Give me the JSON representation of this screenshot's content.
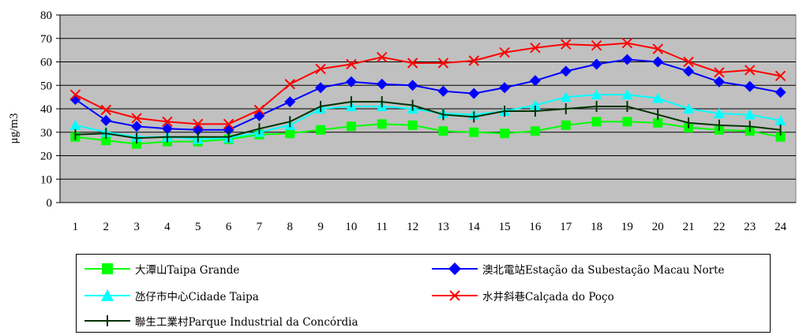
{
  "chart_data": {
    "type": "line",
    "ylabel": "μg/m3",
    "xlabel": "",
    "title": "",
    "ylim": [
      0,
      80
    ],
    "yticks": [
      0,
      10,
      20,
      30,
      40,
      50,
      60,
      70,
      80
    ],
    "categories": [
      "1",
      "2",
      "3",
      "4",
      "5",
      "6",
      "7",
      "8",
      "9",
      "10",
      "11",
      "12",
      "13",
      "14",
      "15",
      "16",
      "17",
      "18",
      "19",
      "20",
      "21",
      "22",
      "23",
      "24"
    ],
    "grid": "horizontal",
    "legend_position": "bottom",
    "series": [
      {
        "name": "大潭山Taipa Grande",
        "color": "#00ff00",
        "marker": "square",
        "values": [
          28,
          26.5,
          25,
          26,
          26,
          27,
          29,
          29.5,
          31,
          32.5,
          33.5,
          33,
          30.5,
          30,
          29.5,
          30.5,
          33,
          34.5,
          34.5,
          34,
          32,
          31,
          30.5,
          28
        ]
      },
      {
        "name": "澳北電站Estação da Subestação Macau Norte",
        "color": "#0000ff",
        "marker": "diamond",
        "values": [
          44,
          35,
          32.5,
          31.5,
          31,
          31,
          37,
          43,
          49,
          51.5,
          50.5,
          50,
          47.5,
          46.5,
          49,
          52,
          56,
          59,
          61,
          60,
          56,
          51.5,
          49.5,
          47
        ]
      },
      {
        "name": "氹仔市中心Cidade Taipa",
        "color": "#00ffff",
        "marker": "triangle",
        "values": [
          33,
          30,
          28,
          28,
          27,
          27.5,
          30,
          33,
          40,
          41,
          41,
          40,
          38,
          37.5,
          39,
          41.5,
          45,
          46,
          46,
          44.5,
          40,
          38,
          37.5,
          35
        ]
      },
      {
        "name": "水井斜巷Calçada do Poço",
        "color": "#ff0000",
        "marker": "x",
        "values": [
          46,
          39.5,
          36,
          34.5,
          33.5,
          33.5,
          39.5,
          50.5,
          57,
          59,
          62,
          59.5,
          59.5,
          60.5,
          64,
          66,
          67.5,
          67,
          68,
          65.5,
          60,
          55.5,
          56.5,
          54
        ]
      },
      {
        "name": "聯生工業村Parque Industrial da Concórdia",
        "color": "#003300",
        "marker": "plus",
        "values": [
          29,
          29.5,
          27.5,
          28,
          28,
          28,
          31.5,
          34.5,
          41,
          43,
          43,
          41.5,
          37.5,
          36.5,
          39,
          39,
          40,
          41,
          41,
          37.5,
          34,
          33,
          32.5,
          31
        ]
      }
    ]
  }
}
